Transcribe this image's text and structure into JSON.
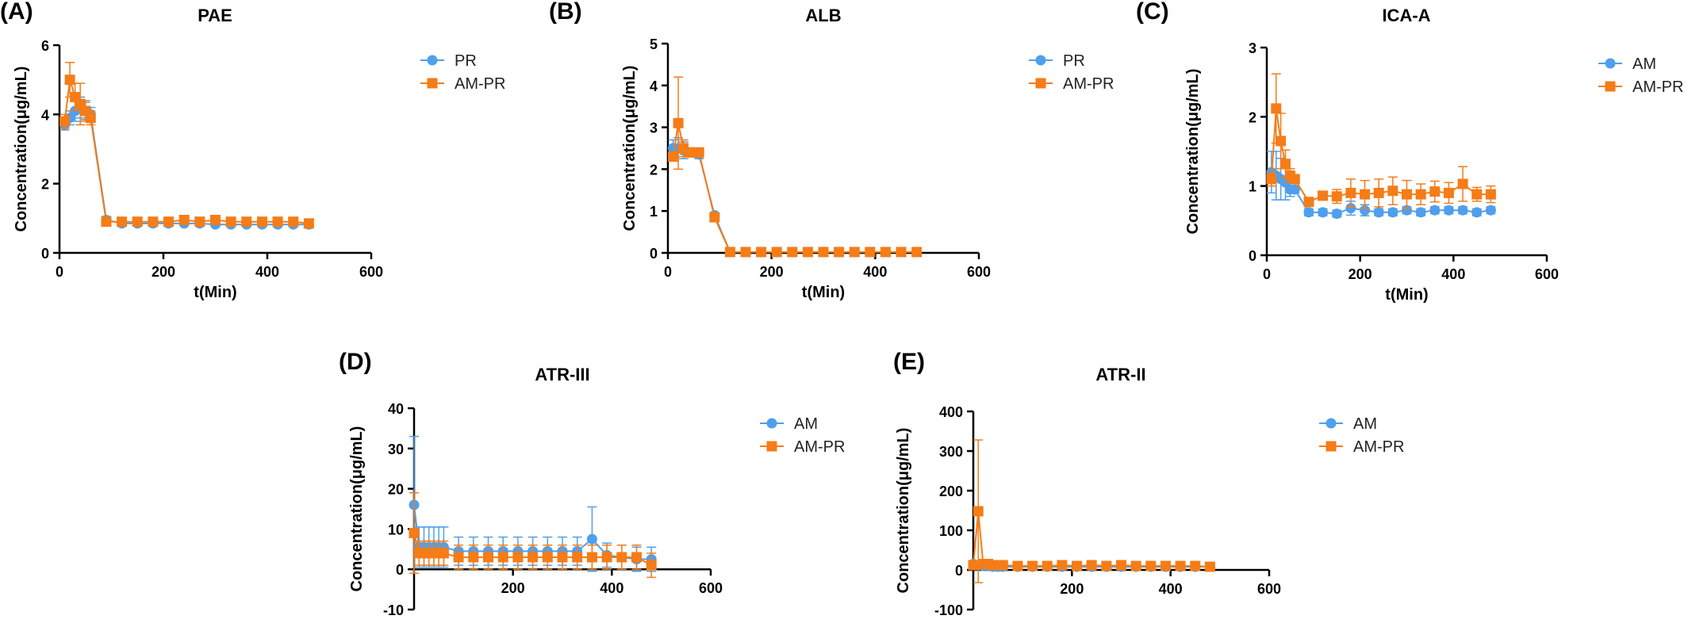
{
  "colors": {
    "blue": "#4f9fec",
    "orange": "#f57c17",
    "axis": "#000000"
  },
  "chart_data": [
    {
      "type": "line",
      "panel_label": "(A)",
      "title": "PAE",
      "xlabel": "t(Min)",
      "ylabel": "Concentration(μg/mL)",
      "xlim": [
        0,
        600
      ],
      "ylim": [
        0,
        6
      ],
      "xticks": [
        0,
        200,
        400,
        600
      ],
      "yticks": [
        0,
        2,
        4,
        6
      ],
      "grid": false,
      "legend_position": "right",
      "series": [
        {
          "name": "PR",
          "marker": "circle",
          "color": "#4f9fec",
          "x": [
            10,
            20,
            30,
            40,
            50,
            60,
            90,
            120,
            150,
            180,
            210,
            240,
            270,
            300,
            330,
            360,
            390,
            420,
            450,
            480
          ],
          "y": [
            3.7,
            3.9,
            4.1,
            4.2,
            4.1,
            4.0,
            0.95,
            0.85,
            0.85,
            0.85,
            0.85,
            0.85,
            0.85,
            0.82,
            0.82,
            0.82,
            0.82,
            0.82,
            0.82,
            0.82
          ],
          "err": [
            0.15,
            0.2,
            0.3,
            0.3,
            0.25,
            0.2,
            0.1,
            0.05,
            0.05,
            0.05,
            0.05,
            0.05,
            0.05,
            0.05,
            0.05,
            0.05,
            0.05,
            0.05,
            0.05,
            0.05
          ]
        },
        {
          "name": "AM-PR",
          "marker": "square",
          "color": "#f57c17",
          "x": [
            10,
            20,
            30,
            40,
            50,
            60,
            90,
            120,
            150,
            180,
            210,
            240,
            270,
            300,
            330,
            360,
            390,
            420,
            450,
            480
          ],
          "y": [
            3.8,
            5.0,
            4.5,
            4.3,
            4.1,
            3.9,
            0.9,
            0.9,
            0.9,
            0.9,
            0.9,
            0.95,
            0.9,
            0.95,
            0.9,
            0.9,
            0.9,
            0.9,
            0.9,
            0.85
          ],
          "err": [
            0.2,
            0.5,
            0.4,
            0.6,
            0.3,
            0.2,
            0.1,
            0.05,
            0.05,
            0.05,
            0.05,
            0.1,
            0.05,
            0.05,
            0.05,
            0.05,
            0.05,
            0.05,
            0.05,
            0.05
          ]
        }
      ]
    },
    {
      "type": "line",
      "panel_label": "(B)",
      "title": "ALB",
      "xlabel": "t(Min)",
      "ylabel": "Concentration(μg/mL)",
      "xlim": [
        0,
        600
      ],
      "ylim": [
        0,
        5
      ],
      "xticks": [
        0,
        200,
        400,
        600
      ],
      "yticks": [
        0,
        1,
        2,
        3,
        4,
        5
      ],
      "grid": false,
      "legend_position": "right",
      "series": [
        {
          "name": "PR",
          "marker": "circle",
          "color": "#4f9fec",
          "x": [
            10,
            20,
            30,
            40,
            50,
            60,
            90,
            120,
            150,
            180,
            210,
            240,
            270,
            300,
            330,
            360,
            390,
            420,
            450,
            480
          ],
          "y": [
            2.5,
            2.5,
            2.45,
            2.4,
            2.4,
            2.35,
            0.9,
            0.02,
            0.02,
            0.02,
            0.02,
            0.02,
            0.02,
            0.02,
            0.02,
            0.02,
            0.02,
            0.02,
            0.02,
            0.02
          ],
          "err": [
            0.2,
            0.25,
            0.2,
            0.1,
            0.1,
            0.1,
            0.05,
            0.01,
            0.01,
            0.01,
            0.01,
            0.01,
            0.01,
            0.01,
            0.01,
            0.01,
            0.01,
            0.01,
            0.01,
            0.01
          ]
        },
        {
          "name": "AM-PR",
          "marker": "square",
          "color": "#f57c17",
          "x": [
            10,
            20,
            30,
            40,
            50,
            60,
            90,
            120,
            150,
            180,
            210,
            240,
            270,
            300,
            330,
            360,
            390,
            420,
            450,
            480
          ],
          "y": [
            2.3,
            3.1,
            2.5,
            2.4,
            2.4,
            2.4,
            0.85,
            0.02,
            0.02,
            0.02,
            0.02,
            0.02,
            0.02,
            0.02,
            0.02,
            0.02,
            0.02,
            0.02,
            0.02,
            0.02
          ],
          "err": [
            0.1,
            1.1,
            0.2,
            0.1,
            0.1,
            0.1,
            0.05,
            0.01,
            0.01,
            0.01,
            0.01,
            0.01,
            0.01,
            0.01,
            0.01,
            0.01,
            0.01,
            0.01,
            0.01,
            0.01
          ]
        }
      ]
    },
    {
      "type": "line",
      "panel_label": "(C)",
      "title": "ICA-A",
      "xlabel": "t(Min)",
      "ylabel": "Concentration(μg/mL)",
      "xlim": [
        0,
        600
      ],
      "ylim": [
        0,
        3
      ],
      "xticks": [
        0,
        200,
        400,
        600
      ],
      "yticks": [
        0,
        1,
        2,
        3
      ],
      "grid": false,
      "legend_position": "right",
      "series": [
        {
          "name": "AM",
          "marker": "circle",
          "color": "#4f9fec",
          "x": [
            10,
            20,
            30,
            40,
            50,
            60,
            90,
            120,
            150,
            180,
            210,
            240,
            270,
            300,
            330,
            360,
            390,
            420,
            450,
            480
          ],
          "y": [
            1.2,
            1.15,
            1.1,
            1.05,
            0.95,
            0.95,
            0.62,
            0.62,
            0.6,
            0.68,
            0.65,
            0.62,
            0.62,
            0.65,
            0.62,
            0.65,
            0.65,
            0.65,
            0.62,
            0.65
          ],
          "err": [
            0.3,
            0.35,
            0.3,
            0.25,
            0.1,
            0.05,
            0.05,
            0.05,
            0.05,
            0.1,
            0.08,
            0.05,
            0.05,
            0.05,
            0.05,
            0.05,
            0.05,
            0.05,
            0.05,
            0.05
          ]
        },
        {
          "name": "AM-PR",
          "marker": "square",
          "color": "#f57c17",
          "x": [
            10,
            20,
            30,
            40,
            50,
            60,
            90,
            120,
            150,
            180,
            210,
            240,
            270,
            300,
            330,
            360,
            390,
            420,
            450,
            480
          ],
          "y": [
            1.1,
            2.12,
            1.65,
            1.32,
            1.15,
            1.1,
            0.77,
            0.86,
            0.85,
            0.9,
            0.88,
            0.9,
            0.93,
            0.88,
            0.88,
            0.92,
            0.9,
            1.03,
            0.88,
            0.88
          ],
          "err": [
            0.1,
            0.5,
            0.4,
            0.2,
            0.1,
            0.05,
            0.05,
            0.05,
            0.1,
            0.2,
            0.2,
            0.2,
            0.2,
            0.2,
            0.15,
            0.15,
            0.15,
            0.25,
            0.1,
            0.12
          ]
        }
      ]
    },
    {
      "type": "line",
      "panel_label": "(D)",
      "title": "ATR-III",
      "xlabel": "t(Min)",
      "ylabel": "Concentration(μg/mL)",
      "xlim": [
        0,
        600
      ],
      "ylim": [
        -10,
        40
      ],
      "xticks": [
        200,
        400,
        600
      ],
      "yticks": [
        -10,
        0,
        10,
        20,
        30,
        40
      ],
      "grid": false,
      "legend_position": "right",
      "series": [
        {
          "name": "AM",
          "marker": "circle",
          "color": "#4f9fec",
          "x": [
            0,
            10,
            20,
            30,
            40,
            50,
            60,
            90,
            120,
            150,
            180,
            210,
            240,
            270,
            300,
            330,
            360,
            390,
            420,
            450,
            480
          ],
          "y": [
            16,
            5.5,
            5.5,
            5.5,
            5.5,
            5.5,
            5.5,
            4.5,
            4.5,
            4.5,
            4.5,
            4.5,
            4.5,
            4.5,
            4.5,
            4.5,
            7.5,
            3.5,
            3.0,
            2.5,
            2.5
          ],
          "err": [
            17,
            5,
            5,
            5,
            5,
            5,
            5,
            3.5,
            3.5,
            3.5,
            3.5,
            3.5,
            3.5,
            3.5,
            3.5,
            3.5,
            8,
            3,
            3,
            3,
            3
          ]
        },
        {
          "name": "AM-PR",
          "marker": "square",
          "color": "#f57c17",
          "x": [
            0,
            10,
            20,
            30,
            40,
            50,
            60,
            90,
            120,
            150,
            180,
            210,
            240,
            270,
            300,
            330,
            360,
            390,
            420,
            450,
            480
          ],
          "y": [
            9,
            4,
            4,
            4,
            4,
            4,
            4,
            3,
            3,
            3,
            3,
            3,
            3,
            3,
            3,
            3,
            3,
            3,
            3,
            3,
            1
          ],
          "err": [
            10,
            3,
            3,
            3,
            3,
            3,
            3,
            3,
            3,
            3,
            3,
            3,
            3,
            3,
            3,
            3,
            3,
            3,
            3,
            3,
            3
          ]
        }
      ]
    },
    {
      "type": "line",
      "panel_label": "(E)",
      "title": "ATR-II",
      "xlabel": "t(Min)",
      "ylabel": "Concentration(μg/mL)",
      "xlim": [
        0,
        600
      ],
      "ylim": [
        -100,
        400
      ],
      "xticks": [
        200,
        400,
        600
      ],
      "yticks": [
        -100,
        0,
        100,
        200,
        300,
        400
      ],
      "grid": false,
      "legend_position": "right",
      "series": [
        {
          "name": "AM",
          "marker": "circle",
          "color": "#4f9fec",
          "x": [
            0,
            10,
            20,
            30,
            40,
            50,
            60,
            90,
            120,
            150,
            180,
            210,
            240,
            270,
            300,
            330,
            360,
            390,
            420,
            450,
            480
          ],
          "y": [
            15,
            12,
            10,
            10,
            8,
            8,
            8,
            8,
            8,
            8,
            8,
            8,
            8,
            8,
            8,
            8,
            8,
            8,
            8,
            8,
            8
          ],
          "err": [
            8,
            5,
            5,
            5,
            4,
            4,
            4,
            4,
            4,
            4,
            4,
            4,
            4,
            4,
            4,
            4,
            4,
            4,
            4,
            4,
            4
          ]
        },
        {
          "name": "AM-PR",
          "marker": "square",
          "color": "#f57c17",
          "x": [
            0,
            10,
            20,
            30,
            40,
            50,
            60,
            90,
            120,
            150,
            180,
            210,
            240,
            270,
            300,
            330,
            360,
            390,
            420,
            450,
            480
          ],
          "y": [
            12,
            148,
            15,
            15,
            12,
            12,
            12,
            10,
            10,
            10,
            12,
            10,
            12,
            10,
            12,
            10,
            10,
            10,
            10,
            10,
            8
          ],
          "err": [
            5,
            180,
            5,
            5,
            4,
            4,
            4,
            4,
            4,
            4,
            4,
            4,
            4,
            4,
            4,
            4,
            4,
            4,
            4,
            4,
            4
          ]
        }
      ]
    }
  ]
}
